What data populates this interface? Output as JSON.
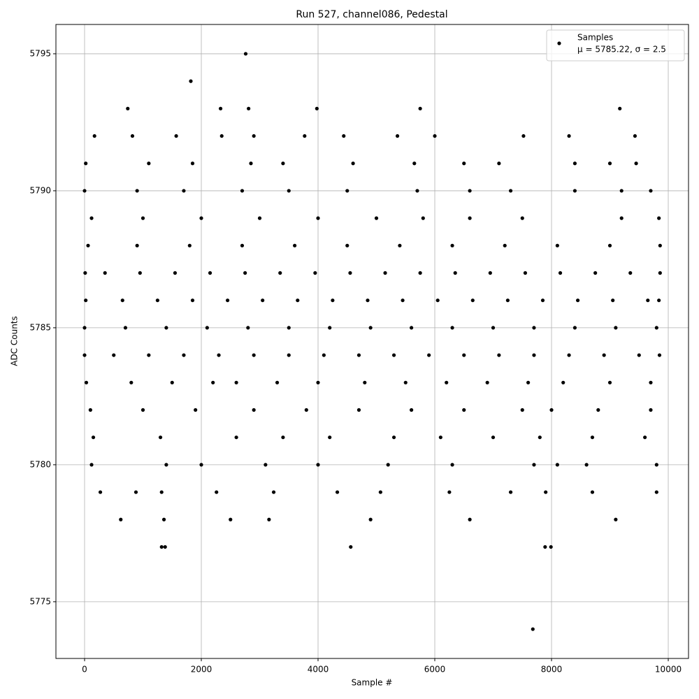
{
  "chart_data": {
    "type": "scatter",
    "title": "Run 527, channel086, Pedestal",
    "xlabel": "Sample #",
    "ylabel": "ADC Counts",
    "xlim": [
      -491,
      10347
    ],
    "ylim": [
      5772.93,
      5796.07
    ],
    "xticks": [
      0,
      2000,
      4000,
      6000,
      8000,
      10000
    ],
    "yticks": [
      5775,
      5780,
      5785,
      5790,
      5795
    ],
    "grid": true,
    "legend": "upper right",
    "series": [
      {
        "name": "Samples",
        "label": "μ = 5785.22, σ = 2.5",
        "color": "#000000",
        "x": [
          0,
          500,
          1100,
          1700,
          2300,
          2900,
          3500,
          4100,
          4700,
          5300,
          5900,
          6500,
          7100,
          7700,
          8300,
          8900,
          9500,
          9850,
          20,
          650,
          1250,
          1850,
          2450,
          3050,
          3650,
          4250,
          4850,
          5450,
          6050,
          6650,
          7250,
          7850,
          8450,
          9050,
          9650,
          9840,
          10,
          350,
          950,
          1550,
          2150,
          2750,
          3350,
          3950,
          4550,
          5150,
          5750,
          6350,
          6950,
          7550,
          8150,
          8750,
          9350,
          9860,
          30,
          800,
          1500,
          2200,
          2600,
          3300,
          4000,
          4800,
          5500,
          6200,
          6900,
          7600,
          8200,
          9000,
          9700,
          0,
          700,
          1400,
          2100,
          2800,
          3500,
          4200,
          4900,
          5600,
          6300,
          7000,
          7700,
          8400,
          9100,
          9800,
          60,
          900,
          1800,
          2700,
          3600,
          4500,
          5400,
          6300,
          7200,
          8100,
          9000,
          9860,
          100,
          1000,
          1900,
          2900,
          3800,
          4700,
          5600,
          6500,
          7500,
          8000,
          8800,
          9700,
          120,
          1000,
          2000,
          3000,
          4000,
          5000,
          5800,
          6600,
          7500,
          9200,
          9840,
          150,
          1300,
          2600,
          3400,
          4200,
          5300,
          6100,
          7000,
          7800,
          8700,
          9600,
          0,
          900,
          1700,
          2700,
          3500,
          4500,
          5700,
          6600,
          7300,
          8400,
          9200,
          9700,
          120,
          1400,
          2000,
          3100,
          4000,
          5200,
          6300,
          7700,
          8100,
          8600,
          9800,
          20,
          1100,
          1850,
          2850,
          3400,
          4600,
          5650,
          6500,
          7100,
          8400,
          9000,
          9450,
          270,
          880,
          1320,
          2260,
          3240,
          4330,
          5070,
          6250,
          7300,
          7900,
          8700,
          9800,
          170,
          820,
          1570,
          2350,
          2900,
          3770,
          4440,
          5360,
          6000,
          7520,
          8300,
          9430,
          2760,
          1820,
          740,
          2330,
          2810,
          3980,
          5750,
          9170,
          7680,
          4560,
          1320,
          1380,
          7890,
          7990,
          620,
          1360,
          2500,
          3160,
          4900,
          6600,
          9100
        ],
        "values": [
          5784,
          5784,
          5784,
          5784,
          5784,
          5784,
          5784,
          5784,
          5784,
          5784,
          5784,
          5784,
          5784,
          5784,
          5784,
          5784,
          5784,
          5784,
          5786,
          5786,
          5786,
          5786,
          5786,
          5786,
          5786,
          5786,
          5786,
          5786,
          5786,
          5786,
          5786,
          5786,
          5786,
          5786,
          5786,
          5786,
          5787,
          5787,
          5787,
          5787,
          5787,
          5787,
          5787,
          5787,
          5787,
          5787,
          5787,
          5787,
          5787,
          5787,
          5787,
          5787,
          5787,
          5787,
          5783,
          5783,
          5783,
          5783,
          5783,
          5783,
          5783,
          5783,
          5783,
          5783,
          5783,
          5783,
          5783,
          5783,
          5783,
          5785,
          5785,
          5785,
          5785,
          5785,
          5785,
          5785,
          5785,
          5785,
          5785,
          5785,
          5785,
          5785,
          5785,
          5785,
          5788,
          5788,
          5788,
          5788,
          5788,
          5788,
          5788,
          5788,
          5788,
          5788,
          5788,
          5788,
          5782,
          5782,
          5782,
          5782,
          5782,
          5782,
          5782,
          5782,
          5782,
          5782,
          5782,
          5782,
          5789,
          5789,
          5789,
          5789,
          5789,
          5789,
          5789,
          5789,
          5789,
          5789,
          5789,
          5781,
          5781,
          5781,
          5781,
          5781,
          5781,
          5781,
          5781,
          5781,
          5781,
          5781,
          5790,
          5790,
          5790,
          5790,
          5790,
          5790,
          5790,
          5790,
          5790,
          5790,
          5790,
          5790,
          5780,
          5780,
          5780,
          5780,
          5780,
          5780,
          5780,
          5780,
          5780,
          5780,
          5780,
          5791,
          5791,
          5791,
          5791,
          5791,
          5791,
          5791,
          5791,
          5791,
          5791,
          5791,
          5791,
          5779,
          5779,
          5779,
          5779,
          5779,
          5779,
          5779,
          5779,
          5779,
          5779,
          5779,
          5779,
          5792,
          5792,
          5792,
          5792,
          5792,
          5792,
          5792,
          5792,
          5792,
          5792,
          5792,
          5792,
          5795,
          5794,
          5793,
          5793,
          5793,
          5793,
          5793,
          5793,
          5774,
          5777,
          5777,
          5777,
          5777,
          5777,
          5778,
          5778,
          5778,
          5778,
          5778,
          5778,
          5778
        ]
      }
    ]
  }
}
